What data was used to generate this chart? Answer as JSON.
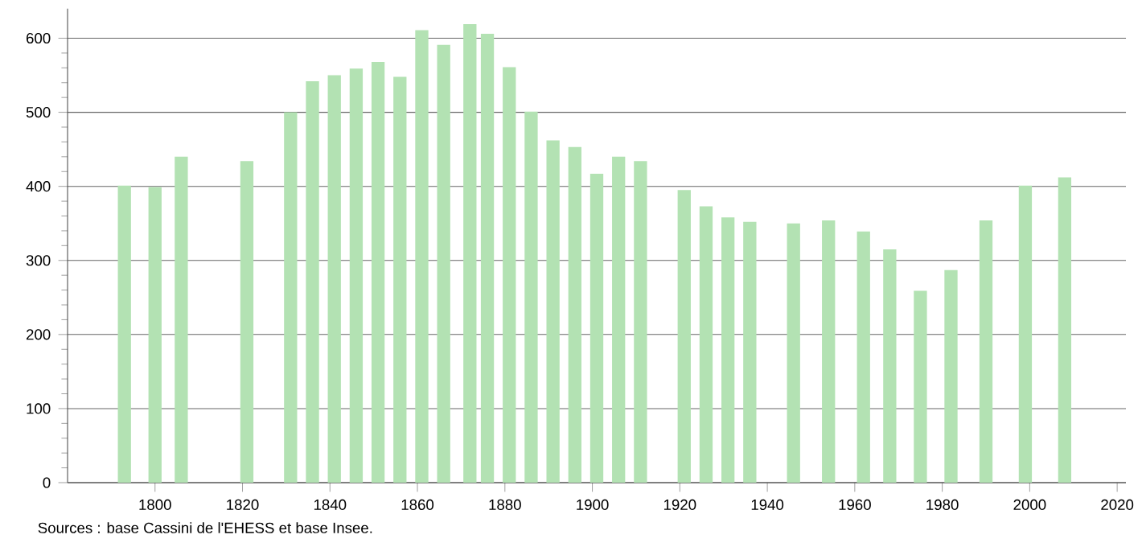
{
  "chart_data": {
    "type": "bar",
    "x": [
      1793,
      1800,
      1806,
      1821,
      1831,
      1836,
      1841,
      1846,
      1851,
      1856,
      1861,
      1866,
      1872,
      1876,
      1881,
      1886,
      1891,
      1896,
      1901,
      1906,
      1911,
      1921,
      1926,
      1931,
      1936,
      1946,
      1954,
      1962,
      1968,
      1975,
      1982,
      1990,
      1999,
      2008
    ],
    "values": [
      401,
      399,
      440,
      434,
      500,
      542,
      550,
      559,
      568,
      548,
      611,
      591,
      619,
      606,
      561,
      501,
      462,
      453,
      417,
      440,
      434,
      395,
      373,
      358,
      352,
      350,
      354,
      339,
      315,
      259,
      287,
      354,
      401,
      412
    ],
    "color": "#b3e2b3",
    "xlim": [
      1780,
      2022
    ],
    "ylim": [
      0,
      640
    ],
    "xticks": [
      1800,
      1820,
      1840,
      1860,
      1880,
      1900,
      1920,
      1940,
      1960,
      1980,
      2000,
      2020
    ],
    "yticks": [
      0,
      100,
      200,
      300,
      400,
      500,
      600
    ],
    "grid": "y",
    "annotations": [
      "Sources : base Cassini de l'EHESS et base Insee."
    ]
  }
}
